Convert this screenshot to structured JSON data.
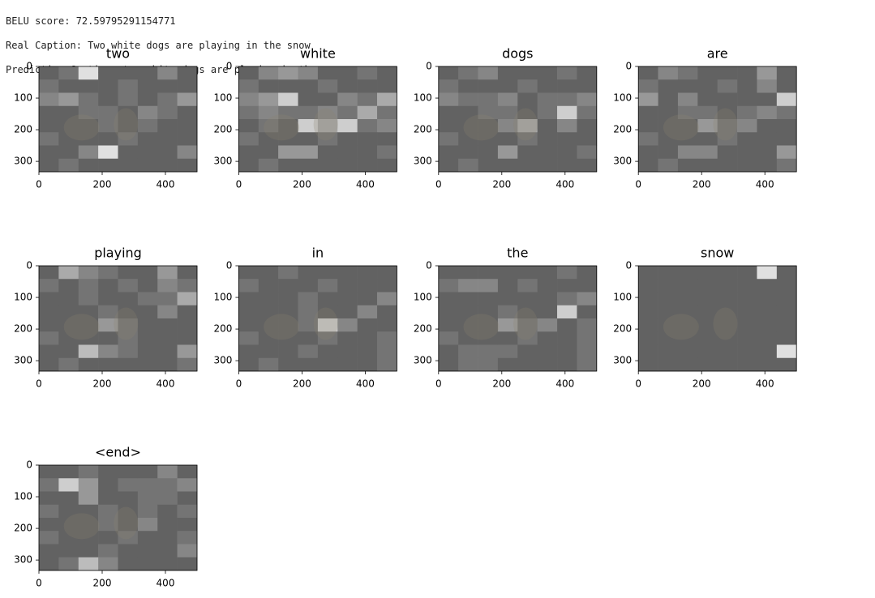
{
  "header": {
    "lines": [
      "BELU score: 72.59795291154771",
      "Real Caption: Two white dogs are playing in the snow",
      "Prediction Caption: two white dogs are playing in the snow"
    ]
  },
  "chart_data": [
    {
      "type": "heatmap",
      "title": "two",
      "xlim": [
        0,
        500
      ],
      "ylim": [
        333,
        0
      ],
      "xticks": [
        0,
        200,
        400
      ],
      "yticks": [
        0,
        100,
        200,
        300
      ],
      "values": [
        [
          0.2,
          0.3,
          0.9,
          0.2,
          0.2,
          0.2,
          0.4,
          0.2
        ],
        [
          0.3,
          0.2,
          0.2,
          0.2,
          0.3,
          0.2,
          0.2,
          0.2
        ],
        [
          0.4,
          0.5,
          0.3,
          0.2,
          0.3,
          0.2,
          0.3,
          0.5
        ],
        [
          0.2,
          0.2,
          0.3,
          0.3,
          0.2,
          0.4,
          0.3,
          0.2
        ],
        [
          0.2,
          0.2,
          0.2,
          0.3,
          0.2,
          0.3,
          0.2,
          0.2
        ],
        [
          0.3,
          0.2,
          0.2,
          0.2,
          0.3,
          0.2,
          0.2,
          0.2
        ],
        [
          0.2,
          0.2,
          0.4,
          0.9,
          0.2,
          0.2,
          0.2,
          0.4
        ],
        [
          0.2,
          0.3,
          0.2,
          0.2,
          0.2,
          0.2,
          0.2,
          0.2
        ]
      ]
    },
    {
      "type": "heatmap",
      "title": "white",
      "xlim": [
        0,
        500
      ],
      "ylim": [
        333,
        0
      ],
      "xticks": [
        0,
        200,
        400
      ],
      "yticks": [
        0,
        100,
        200,
        300
      ],
      "values": [
        [
          0.2,
          0.4,
          0.5,
          0.4,
          0.2,
          0.2,
          0.3,
          0.2
        ],
        [
          0.3,
          0.2,
          0.2,
          0.2,
          0.3,
          0.2,
          0.2,
          0.2
        ],
        [
          0.4,
          0.5,
          0.8,
          0.2,
          0.2,
          0.4,
          0.3,
          0.6
        ],
        [
          0.3,
          0.4,
          0.3,
          0.3,
          0.4,
          0.3,
          0.6,
          0.3
        ],
        [
          0.2,
          0.3,
          0.2,
          0.8,
          0.6,
          0.8,
          0.3,
          0.4
        ],
        [
          0.3,
          0.2,
          0.2,
          0.2,
          0.3,
          0.2,
          0.2,
          0.2
        ],
        [
          0.2,
          0.2,
          0.5,
          0.5,
          0.2,
          0.2,
          0.2,
          0.3
        ],
        [
          0.2,
          0.3,
          0.2,
          0.2,
          0.2,
          0.2,
          0.2,
          0.2
        ]
      ]
    },
    {
      "type": "heatmap",
      "title": "dogs",
      "xlim": [
        0,
        500
      ],
      "ylim": [
        333,
        0
      ],
      "xticks": [
        0,
        200,
        400
      ],
      "yticks": [
        0,
        100,
        200,
        300
      ],
      "values": [
        [
          0.2,
          0.3,
          0.4,
          0.2,
          0.2,
          0.2,
          0.3,
          0.2
        ],
        [
          0.3,
          0.2,
          0.2,
          0.2,
          0.3,
          0.2,
          0.2,
          0.2
        ],
        [
          0.4,
          0.3,
          0.3,
          0.4,
          0.2,
          0.3,
          0.3,
          0.4
        ],
        [
          0.2,
          0.2,
          0.3,
          0.3,
          0.2,
          0.3,
          0.8,
          0.3
        ],
        [
          0.2,
          0.2,
          0.2,
          0.4,
          0.6,
          0.2,
          0.4,
          0.2
        ],
        [
          0.3,
          0.2,
          0.2,
          0.2,
          0.3,
          0.2,
          0.2,
          0.2
        ],
        [
          0.2,
          0.2,
          0.2,
          0.5,
          0.2,
          0.2,
          0.2,
          0.3
        ],
        [
          0.2,
          0.3,
          0.2,
          0.2,
          0.2,
          0.2,
          0.2,
          0.2
        ]
      ]
    },
    {
      "type": "heatmap",
      "title": "are",
      "xlim": [
        0,
        500
      ],
      "ylim": [
        333,
        0
      ],
      "xticks": [
        0,
        200,
        400
      ],
      "yticks": [
        0,
        100,
        200,
        300
      ],
      "values": [
        [
          0.2,
          0.4,
          0.3,
          0.2,
          0.2,
          0.2,
          0.5,
          0.2
        ],
        [
          0.3,
          0.2,
          0.2,
          0.2,
          0.3,
          0.2,
          0.4,
          0.2
        ],
        [
          0.5,
          0.2,
          0.4,
          0.2,
          0.2,
          0.2,
          0.2,
          0.8
        ],
        [
          0.2,
          0.2,
          0.3,
          0.3,
          0.2,
          0.3,
          0.4,
          0.3
        ],
        [
          0.2,
          0.2,
          0.2,
          0.5,
          0.3,
          0.4,
          0.2,
          0.2
        ],
        [
          0.3,
          0.2,
          0.2,
          0.2,
          0.3,
          0.2,
          0.2,
          0.2
        ],
        [
          0.2,
          0.2,
          0.4,
          0.4,
          0.2,
          0.2,
          0.2,
          0.5
        ],
        [
          0.2,
          0.3,
          0.2,
          0.2,
          0.2,
          0.2,
          0.2,
          0.3
        ]
      ]
    },
    {
      "type": "heatmap",
      "title": "playing",
      "xlim": [
        0,
        500
      ],
      "ylim": [
        333,
        0
      ],
      "xticks": [
        0,
        200,
        400
      ],
      "yticks": [
        0,
        100,
        200,
        300
      ],
      "values": [
        [
          0.2,
          0.6,
          0.4,
          0.3,
          0.2,
          0.2,
          0.5,
          0.2
        ],
        [
          0.3,
          0.2,
          0.3,
          0.2,
          0.3,
          0.2,
          0.4,
          0.3
        ],
        [
          0.2,
          0.2,
          0.3,
          0.2,
          0.2,
          0.3,
          0.3,
          0.6
        ],
        [
          0.2,
          0.2,
          0.2,
          0.3,
          0.2,
          0.2,
          0.4,
          0.2
        ],
        [
          0.2,
          0.2,
          0.2,
          0.5,
          0.3,
          0.2,
          0.2,
          0.2
        ],
        [
          0.3,
          0.2,
          0.2,
          0.2,
          0.3,
          0.2,
          0.2,
          0.2
        ],
        [
          0.2,
          0.2,
          0.7,
          0.4,
          0.3,
          0.2,
          0.2,
          0.5
        ],
        [
          0.2,
          0.3,
          0.2,
          0.2,
          0.2,
          0.2,
          0.2,
          0.3
        ]
      ]
    },
    {
      "type": "heatmap",
      "title": "in",
      "xlim": [
        0,
        500
      ],
      "ylim": [
        333,
        0
      ],
      "xticks": [
        0,
        200,
        400
      ],
      "yticks": [
        0,
        100,
        200,
        300
      ],
      "values": [
        [
          0.2,
          0.2,
          0.3,
          0.2,
          0.2,
          0.2,
          0.2,
          0.2
        ],
        [
          0.3,
          0.2,
          0.2,
          0.2,
          0.3,
          0.2,
          0.2,
          0.2
        ],
        [
          0.2,
          0.2,
          0.2,
          0.3,
          0.2,
          0.2,
          0.2,
          0.4
        ],
        [
          0.2,
          0.2,
          0.2,
          0.3,
          0.2,
          0.2,
          0.4,
          0.2
        ],
        [
          0.2,
          0.2,
          0.2,
          0.3,
          0.8,
          0.4,
          0.2,
          0.2
        ],
        [
          0.3,
          0.2,
          0.2,
          0.2,
          0.3,
          0.2,
          0.2,
          0.3
        ],
        [
          0.2,
          0.2,
          0.2,
          0.3,
          0.2,
          0.2,
          0.2,
          0.3
        ],
        [
          0.2,
          0.3,
          0.2,
          0.2,
          0.2,
          0.2,
          0.2,
          0.3
        ]
      ]
    },
    {
      "type": "heatmap",
      "title": "the",
      "xlim": [
        0,
        500
      ],
      "ylim": [
        333,
        0
      ],
      "xticks": [
        0,
        200,
        400
      ],
      "yticks": [
        0,
        100,
        200,
        300
      ],
      "values": [
        [
          0.2,
          0.2,
          0.2,
          0.2,
          0.2,
          0.2,
          0.3,
          0.2
        ],
        [
          0.3,
          0.4,
          0.4,
          0.2,
          0.3,
          0.2,
          0.2,
          0.2
        ],
        [
          0.2,
          0.2,
          0.2,
          0.2,
          0.2,
          0.2,
          0.3,
          0.4
        ],
        [
          0.2,
          0.2,
          0.2,
          0.3,
          0.2,
          0.2,
          0.8,
          0.2
        ],
        [
          0.2,
          0.2,
          0.2,
          0.5,
          0.3,
          0.4,
          0.2,
          0.3
        ],
        [
          0.3,
          0.2,
          0.2,
          0.2,
          0.3,
          0.2,
          0.2,
          0.3
        ],
        [
          0.2,
          0.3,
          0.3,
          0.3,
          0.2,
          0.2,
          0.2,
          0.3
        ],
        [
          0.2,
          0.3,
          0.3,
          0.2,
          0.2,
          0.2,
          0.2,
          0.3
        ]
      ]
    },
    {
      "type": "heatmap",
      "title": "snow",
      "xlim": [
        0,
        500
      ],
      "ylim": [
        333,
        0
      ],
      "xticks": [
        0,
        200,
        400
      ],
      "yticks": [
        0,
        100,
        200,
        300
      ],
      "values": [
        [
          0.2,
          0.2,
          0.2,
          0.2,
          0.2,
          0.2,
          0.9,
          0.2
        ],
        [
          0.2,
          0.2,
          0.2,
          0.2,
          0.2,
          0.2,
          0.2,
          0.2
        ],
        [
          0.2,
          0.2,
          0.2,
          0.2,
          0.2,
          0.2,
          0.2,
          0.2
        ],
        [
          0.2,
          0.2,
          0.2,
          0.2,
          0.2,
          0.2,
          0.2,
          0.2
        ],
        [
          0.2,
          0.2,
          0.2,
          0.2,
          0.2,
          0.2,
          0.2,
          0.2
        ],
        [
          0.2,
          0.2,
          0.2,
          0.2,
          0.2,
          0.2,
          0.2,
          0.2
        ],
        [
          0.2,
          0.2,
          0.2,
          0.2,
          0.2,
          0.2,
          0.2,
          0.9
        ],
        [
          0.2,
          0.2,
          0.2,
          0.2,
          0.2,
          0.2,
          0.2,
          0.2
        ]
      ]
    },
    {
      "type": "heatmap",
      "title": "<end>",
      "xlim": [
        0,
        500
      ],
      "ylim": [
        333,
        0
      ],
      "xticks": [
        0,
        200,
        400
      ],
      "yticks": [
        0,
        100,
        200,
        300
      ],
      "values": [
        [
          0.2,
          0.2,
          0.3,
          0.2,
          0.2,
          0.2,
          0.4,
          0.2
        ],
        [
          0.3,
          0.8,
          0.5,
          0.2,
          0.3,
          0.3,
          0.3,
          0.4
        ],
        [
          0.2,
          0.2,
          0.5,
          0.2,
          0.2,
          0.3,
          0.3,
          0.2
        ],
        [
          0.3,
          0.2,
          0.2,
          0.3,
          0.2,
          0.3,
          0.2,
          0.3
        ],
        [
          0.2,
          0.2,
          0.2,
          0.3,
          0.2,
          0.4,
          0.2,
          0.2
        ],
        [
          0.3,
          0.2,
          0.2,
          0.2,
          0.3,
          0.2,
          0.2,
          0.3
        ],
        [
          0.2,
          0.2,
          0.2,
          0.3,
          0.2,
          0.2,
          0.2,
          0.4
        ],
        [
          0.2,
          0.3,
          0.7,
          0.4,
          0.2,
          0.2,
          0.2,
          0.2
        ]
      ]
    }
  ]
}
